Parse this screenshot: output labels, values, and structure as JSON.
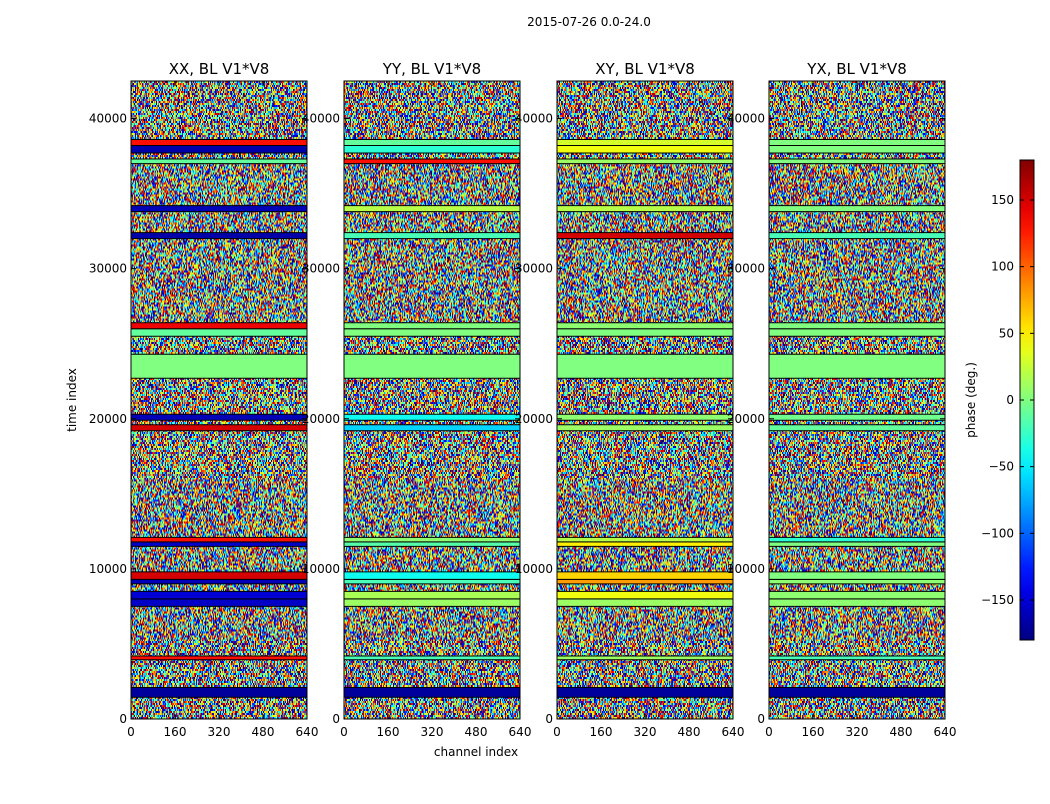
{
  "chart_data": {
    "type": "heatmap",
    "suptitle": "2015-07-26 0.0-24.0",
    "xlabel": "channel index",
    "ylabel": "time index",
    "xlim": [
      0,
      640
    ],
    "ylim": [
      0,
      42500
    ],
    "x_ticks": [
      0,
      160,
      320,
      480,
      640
    ],
    "x_tick_labels": [
      "0",
      "160",
      "320",
      "480",
      "640"
    ],
    "y_ticks": [
      0,
      10000,
      20000,
      30000,
      40000
    ],
    "y_tick_labels": [
      "0",
      "10000",
      "20000",
      "30000",
      "40000"
    ],
    "colormap": "jet",
    "colorbar": {
      "label": "phase (deg.)",
      "range": [
        -180,
        180
      ],
      "ticks": [
        -150,
        -100,
        -50,
        0,
        50,
        100,
        150
      ],
      "tick_labels": [
        "−150",
        "−100",
        "−50",
        "0",
        "50",
        "100",
        "150"
      ]
    },
    "panels": [
      {
        "title": "XX, BL V1*V8"
      },
      {
        "title": "YY, BL V1*V8"
      },
      {
        "title": "XY, BL V1*V8"
      },
      {
        "title": "YX, BL V1*V8"
      }
    ],
    "band_rows": [
      {
        "y0": 1450,
        "y1": 2100,
        "phase": [
          -170,
          -170,
          -170,
          -170
        ]
      },
      {
        "y0": 3950,
        "y1": 4200,
        "phase": [
          130,
          -20,
          10,
          -20
        ]
      },
      {
        "y0": 7500,
        "y1": 8000,
        "phase": [
          -155,
          10,
          10,
          5
        ]
      },
      {
        "y0": 8000,
        "y1": 8500,
        "phase": [
          -150,
          15,
          40,
          5
        ]
      },
      {
        "y0": 9000,
        "y1": 9300,
        "phase": [
          -160,
          -20,
          80,
          5
        ]
      },
      {
        "y0": 9300,
        "y1": 9800,
        "phase": [
          150,
          -40,
          60,
          0
        ]
      },
      {
        "y0": 11500,
        "y1": 11800,
        "phase": [
          -155,
          -15,
          50,
          0
        ]
      },
      {
        "y0": 11800,
        "y1": 12100,
        "phase": [
          130,
          5,
          20,
          -30
        ]
      },
      {
        "y0": 19200,
        "y1": 19600,
        "phase": [
          150,
          -60,
          10,
          -10
        ]
      },
      {
        "y0": 19900,
        "y1": 20300,
        "phase": [
          -160,
          -40,
          5,
          -5
        ]
      },
      {
        "y0": 22700,
        "y1": 24300,
        "phase": [
          0,
          0,
          0,
          0
        ]
      },
      {
        "y0": 25500,
        "y1": 26000,
        "phase": [
          -10,
          0,
          0,
          0
        ]
      },
      {
        "y0": 26000,
        "y1": 26400,
        "phase": [
          140,
          0,
          5,
          0
        ]
      },
      {
        "y0": 32000,
        "y1": 32400,
        "phase": [
          -165,
          -20,
          150,
          -20
        ]
      },
      {
        "y0": 33800,
        "y1": 34200,
        "phase": [
          -160,
          20,
          20,
          0
        ]
      },
      {
        "y0": 37000,
        "y1": 37300,
        "phase": [
          -10,
          130,
          10,
          0
        ]
      },
      {
        "y0": 37700,
        "y1": 38200,
        "phase": [
          -165,
          -30,
          40,
          0
        ]
      },
      {
        "y0": 38200,
        "y1": 38600,
        "phase": [
          130,
          -10,
          30,
          0
        ]
      }
    ]
  }
}
